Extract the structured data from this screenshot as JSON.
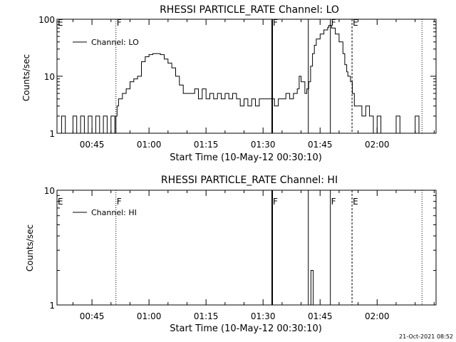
{
  "footer_timestamp": "21-Oct-2021 08:52",
  "chart_data": [
    {
      "type": "line",
      "title": "RHESSI PARTICLE_RATE Channel: LO",
      "xlabel": "Start Time (10-May-12 00:30:10)",
      "ylabel": "Counts/sec",
      "yscale": "log",
      "ylim": [
        1,
        100
      ],
      "xlim_minutes": [
        36.8,
        136.5
      ],
      "x_ticks": [
        {
          "t": 46,
          "label": "00:45"
        },
        {
          "t": 61,
          "label": "01:00"
        },
        {
          "t": 76,
          "label": "01:15"
        },
        {
          "t": 91,
          "label": "01:30"
        },
        {
          "t": 106,
          "label": "01:45"
        },
        {
          "t": 121,
          "label": "02:00"
        }
      ],
      "y_ticks": [
        {
          "v": 1,
          "label": "1"
        },
        {
          "v": 10,
          "label": "10"
        },
        {
          "v": 100,
          "label": "100"
        }
      ],
      "legend": {
        "position": "top-left",
        "label": "Channel: LO"
      },
      "markers": [
        {
          "t": 36.8,
          "label": "E",
          "style": "none"
        },
        {
          "t": 52.3,
          "label": "F",
          "style": "dotted"
        },
        {
          "t": 93.4,
          "label": "F",
          "style": "thick"
        },
        {
          "t": 102.9,
          "label": "",
          "style": "solid"
        },
        {
          "t": 108.7,
          "label": "F",
          "style": "solid"
        },
        {
          "t": 114.4,
          "label": "E",
          "style": "dashed"
        },
        {
          "t": 132.8,
          "label": "",
          "style": "dotted"
        }
      ],
      "series": [
        {
          "name": "Channel: LO",
          "points": [
            [
              37.0,
              1
            ],
            [
              38.0,
              2
            ],
            [
              39.0,
              1
            ],
            [
              40.0,
              1
            ],
            [
              41.0,
              2
            ],
            [
              42.0,
              1
            ],
            [
              43.0,
              2
            ],
            [
              44.0,
              1
            ],
            [
              45.0,
              2
            ],
            [
              46.0,
              1
            ],
            [
              47.0,
              2
            ],
            [
              48.0,
              1
            ],
            [
              49.0,
              2
            ],
            [
              50.0,
              1
            ],
            [
              51.0,
              2
            ],
            [
              52.0,
              1
            ],
            [
              52.3,
              2
            ],
            [
              52.6,
              3
            ],
            [
              53.0,
              4
            ],
            [
              54.0,
              5
            ],
            [
              55.0,
              6
            ],
            [
              56.0,
              8
            ],
            [
              57.0,
              9
            ],
            [
              58.0,
              10
            ],
            [
              59.0,
              18
            ],
            [
              60.0,
              22
            ],
            [
              61.0,
              24
            ],
            [
              62.0,
              25
            ],
            [
              63.0,
              25
            ],
            [
              64.0,
              24
            ],
            [
              65.0,
              20
            ],
            [
              66.0,
              17
            ],
            [
              67.0,
              14
            ],
            [
              68.0,
              10
            ],
            [
              69.0,
              7
            ],
            [
              70.0,
              5
            ],
            [
              71.0,
              5
            ],
            [
              72.0,
              5
            ],
            [
              73.0,
              6
            ],
            [
              74.0,
              4
            ],
            [
              75.0,
              6
            ],
            [
              76.0,
              4
            ],
            [
              77.0,
              5
            ],
            [
              78.0,
              4
            ],
            [
              79.0,
              5
            ],
            [
              80.0,
              4
            ],
            [
              81.0,
              5
            ],
            [
              82.0,
              4
            ],
            [
              83.0,
              5
            ],
            [
              84.0,
              4
            ],
            [
              85.0,
              3
            ],
            [
              86.0,
              4
            ],
            [
              87.0,
              3
            ],
            [
              88.0,
              4
            ],
            [
              89.0,
              3
            ],
            [
              90.0,
              4
            ],
            [
              91.0,
              4
            ],
            [
              92.0,
              4
            ],
            [
              93.0,
              4
            ],
            [
              94.0,
              3
            ],
            [
              95.0,
              4
            ],
            [
              96.0,
              4
            ],
            [
              97.0,
              5
            ],
            [
              98.0,
              4
            ],
            [
              99.0,
              5
            ],
            [
              100.0,
              6
            ],
            [
              100.5,
              10
            ],
            [
              101.0,
              8
            ],
            [
              102.0,
              5
            ],
            [
              102.5,
              6
            ],
            [
              103.0,
              8
            ],
            [
              103.5,
              15
            ],
            [
              104.0,
              25
            ],
            [
              104.5,
              35
            ],
            [
              105.0,
              45
            ],
            [
              106.0,
              55
            ],
            [
              107.0,
              65
            ],
            [
              108.0,
              72
            ],
            [
              108.3,
              78
            ],
            [
              109.0,
              70
            ],
            [
              110.0,
              55
            ],
            [
              111.0,
              40
            ],
            [
              112.0,
              25
            ],
            [
              112.5,
              16
            ],
            [
              113.0,
              12
            ],
            [
              113.3,
              10
            ],
            [
              114.0,
              8
            ],
            [
              114.5,
              5
            ],
            [
              115.0,
              3
            ],
            [
              116.0,
              3
            ],
            [
              117.0,
              2
            ],
            [
              118.0,
              3
            ],
            [
              119.0,
              2
            ],
            [
              120.0,
              1
            ],
            [
              121.0,
              2
            ],
            [
              122.0,
              1
            ],
            [
              123.0,
              1
            ],
            [
              124.0,
              1
            ],
            [
              125.0,
              1
            ],
            [
              126.0,
              2
            ],
            [
              127.0,
              1
            ],
            [
              128.0,
              1
            ],
            [
              129.0,
              1
            ],
            [
              130.0,
              1
            ],
            [
              131.0,
              2
            ],
            [
              132.0,
              1
            ]
          ]
        }
      ]
    },
    {
      "type": "line",
      "title": "RHESSI PARTICLE_RATE Channel: HI",
      "xlabel": "Start Time (10-May-12 00:30:10)",
      "ylabel": "Counts/sec",
      "yscale": "log",
      "ylim": [
        1,
        10
      ],
      "xlim_minutes": [
        36.8,
        136.5
      ],
      "x_ticks": [
        {
          "t": 46,
          "label": "00:45"
        },
        {
          "t": 61,
          "label": "01:00"
        },
        {
          "t": 76,
          "label": "01:15"
        },
        {
          "t": 91,
          "label": "01:30"
        },
        {
          "t": 106,
          "label": "01:45"
        },
        {
          "t": 121,
          "label": "02:00"
        }
      ],
      "y_ticks": [
        {
          "v": 1,
          "label": "1"
        },
        {
          "v": 10,
          "label": "10"
        }
      ],
      "legend": {
        "position": "top-left",
        "label": "Channel: HI"
      },
      "markers": [
        {
          "t": 36.8,
          "label": "E",
          "style": "none"
        },
        {
          "t": 52.3,
          "label": "F",
          "style": "dotted"
        },
        {
          "t": 93.4,
          "label": "F",
          "style": "thick"
        },
        {
          "t": 102.9,
          "label": "",
          "style": "solid"
        },
        {
          "t": 108.7,
          "label": "F",
          "style": "solid"
        },
        {
          "t": 114.4,
          "label": "E",
          "style": "dashed"
        },
        {
          "t": 132.8,
          "label": "",
          "style": "dotted"
        }
      ],
      "series": [
        {
          "name": "Channel: HI",
          "points": [
            [
              103.5,
              1
            ],
            [
              103.6,
              2
            ],
            [
              104.1,
              2
            ],
            [
              104.2,
              1
            ]
          ]
        }
      ]
    }
  ]
}
